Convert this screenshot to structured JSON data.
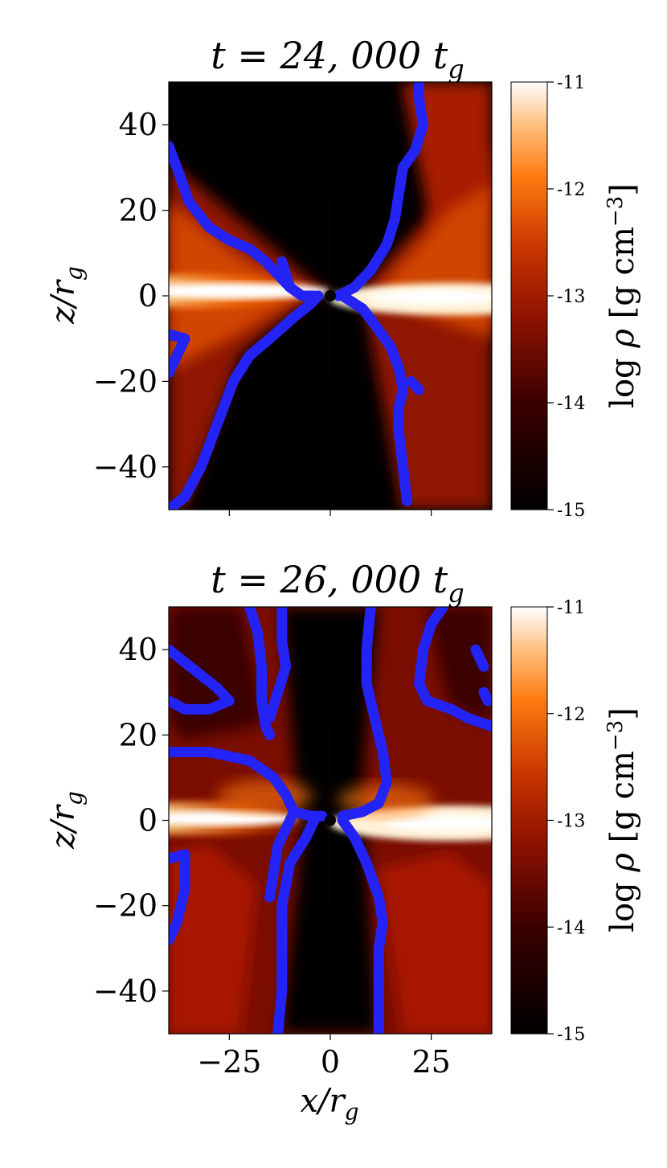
{
  "chart_data": [
    {
      "type": "heatmap",
      "title": "t = 24, 000 t_g",
      "title_main": "t = 24, 000 t",
      "title_sub": "g",
      "xlabel": "x/r_g",
      "ylabel": "z/r_g",
      "xlim": [
        -40,
        40
      ],
      "ylim": [
        -50,
        50
      ],
      "x_ticks": [
        -25,
        0,
        25
      ],
      "x_ticklabels_shown": false,
      "y_ticks": [
        {
          "value": 40,
          "label": "40"
        },
        {
          "value": 20,
          "label": "20"
        },
        {
          "value": 0,
          "label": "0"
        },
        {
          "value": -20,
          "label": "−20"
        },
        {
          "value": -40,
          "label": "−40"
        }
      ],
      "colorbar": {
        "label": "log ρ [g cm^−3]",
        "range": [
          -15,
          -11
        ],
        "ticks": [
          {
            "value": -11,
            "label": "-11"
          },
          {
            "value": -12,
            "label": "-12"
          },
          {
            "value": -13,
            "label": "-13"
          },
          {
            "value": -14,
            "label": "-14"
          },
          {
            "value": -15,
            "label": "-15"
          }
        ],
        "colormap": "gist_heat"
      },
      "contour_color": "#2323f5",
      "contours": [
        [
          [
            -40,
            35
          ],
          [
            -38,
            30
          ],
          [
            -35,
            22
          ],
          [
            -30,
            16
          ],
          [
            -25,
            13
          ],
          [
            -20,
            11
          ],
          [
            -16,
            8
          ],
          [
            -13,
            5
          ],
          [
            -10,
            2
          ],
          [
            -7,
            0
          ],
          [
            -4,
            0
          ]
        ],
        [
          [
            -12,
            8
          ],
          [
            -11,
            5
          ],
          [
            -10,
            2
          ]
        ],
        [
          [
            -3,
            0
          ],
          [
            -5,
            -2
          ],
          [
            -9,
            -5
          ],
          [
            -15,
            -10
          ],
          [
            -20,
            -14
          ],
          [
            -24,
            -20
          ],
          [
            -28,
            -30
          ],
          [
            -32,
            -40
          ],
          [
            -36,
            -47
          ],
          [
            -40,
            -50
          ]
        ],
        [
          [
            -40,
            -18
          ],
          [
            -38,
            -14
          ],
          [
            -36,
            -10
          ],
          [
            -40,
            -9
          ]
        ],
        [
          [
            2,
            0
          ],
          [
            6,
            2
          ],
          [
            10,
            6
          ],
          [
            14,
            12
          ],
          [
            16,
            18
          ],
          [
            17,
            24
          ],
          [
            18,
            30
          ],
          [
            21,
            34
          ],
          [
            23,
            40
          ],
          [
            22,
            46
          ],
          [
            22,
            50
          ]
        ],
        [
          [
            3,
            0
          ],
          [
            8,
            -3
          ],
          [
            12,
            -8
          ],
          [
            15,
            -12
          ],
          [
            17,
            -17
          ],
          [
            18,
            -22
          ],
          [
            17,
            -26
          ],
          [
            17,
            -32
          ],
          [
            18,
            -40
          ],
          [
            19,
            -48
          ]
        ],
        [
          [
            20,
            -20
          ],
          [
            22,
            -22
          ]
        ]
      ],
      "horizon_x": 0,
      "horizon_z": 0
    },
    {
      "type": "heatmap",
      "title": "t = 26, 000 t_g",
      "title_main": "t = 26, 000 t",
      "title_sub": "g",
      "xlabel": "x/r_g",
      "xlabel_main": "x/r",
      "xlabel_sub": "g",
      "ylabel": "z/r_g",
      "xlim": [
        -40,
        40
      ],
      "ylim": [
        -50,
        50
      ],
      "x_ticks": [
        {
          "value": -25,
          "label": "−25"
        },
        {
          "value": 0,
          "label": "0"
        },
        {
          "value": 25,
          "label": "25"
        }
      ],
      "y_ticks": [
        {
          "value": 40,
          "label": "40"
        },
        {
          "value": 20,
          "label": "20"
        },
        {
          "value": 0,
          "label": "0"
        },
        {
          "value": -20,
          "label": "−20"
        },
        {
          "value": -40,
          "label": "−40"
        }
      ],
      "colorbar": {
        "label": "log ρ [g cm^−3]",
        "range": [
          -15,
          -11
        ],
        "ticks": [
          {
            "value": -11,
            "label": "-11"
          },
          {
            "value": -12,
            "label": "-12"
          },
          {
            "value": -13,
            "label": "-13"
          },
          {
            "value": -14,
            "label": "-14"
          },
          {
            "value": -15,
            "label": "-15"
          }
        ],
        "colormap": "gist_heat"
      },
      "contour_color": "#2323f5",
      "contours": [
        [
          [
            -40,
            40
          ],
          [
            -36,
            37
          ],
          [
            -32,
            34
          ],
          [
            -28,
            31
          ],
          [
            -25,
            28
          ],
          [
            -30,
            26
          ],
          [
            -36,
            26
          ],
          [
            -40,
            28
          ]
        ],
        [
          [
            -20,
            50
          ],
          [
            -18,
            44
          ],
          [
            -17,
            36
          ],
          [
            -17,
            28
          ],
          [
            -16,
            22
          ],
          [
            -15,
            20
          ]
        ],
        [
          [
            -12,
            50
          ],
          [
            -12,
            42
          ],
          [
            -11,
            36
          ],
          [
            -13,
            30
          ],
          [
            -15,
            24
          ]
        ],
        [
          [
            -40,
            16
          ],
          [
            -30,
            16
          ],
          [
            -20,
            14
          ],
          [
            -14,
            10
          ],
          [
            -11,
            6
          ],
          [
            -9,
            2
          ],
          [
            -5,
            1
          ],
          [
            -2,
            1
          ]
        ],
        [
          [
            -40,
            -28
          ],
          [
            -38,
            -24
          ],
          [
            -36,
            -16
          ],
          [
            -36,
            -8
          ],
          [
            -40,
            -9
          ]
        ],
        [
          [
            -9,
            2
          ],
          [
            -11,
            -2
          ],
          [
            -13,
            -6
          ],
          [
            -14,
            -12
          ],
          [
            -15,
            -18
          ]
        ],
        [
          [
            -4,
            0
          ],
          [
            -6,
            -4
          ],
          [
            -10,
            -10
          ],
          [
            -12,
            -20
          ],
          [
            -12,
            -30
          ],
          [
            -12,
            -40
          ],
          [
            -13,
            -50
          ]
        ],
        [
          [
            10,
            50
          ],
          [
            9,
            40
          ],
          [
            9,
            32
          ],
          [
            11,
            24
          ],
          [
            13,
            16
          ],
          [
            14,
            9
          ],
          [
            12,
            4
          ],
          [
            8,
            2
          ],
          [
            3,
            1
          ]
        ],
        [
          [
            3,
            0
          ],
          [
            6,
            -4
          ],
          [
            9,
            -10
          ],
          [
            12,
            -18
          ],
          [
            13,
            -24
          ],
          [
            12,
            -30
          ],
          [
            12,
            -40
          ],
          [
            12,
            -50
          ]
        ],
        [
          [
            28,
            50
          ],
          [
            25,
            46
          ],
          [
            23,
            40
          ],
          [
            22,
            32
          ],
          [
            24,
            28
          ],
          [
            30,
            26
          ],
          [
            34,
            24
          ],
          [
            40,
            22
          ]
        ],
        [
          [
            36,
            40
          ],
          [
            38,
            36
          ]
        ],
        [
          [
            38,
            30
          ],
          [
            39,
            28
          ]
        ]
      ],
      "horizon_x": 0,
      "horizon_z": 0
    }
  ]
}
